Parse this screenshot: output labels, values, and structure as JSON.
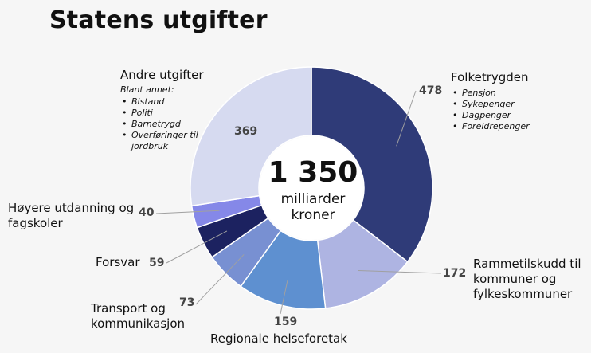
{
  "chart_data": {
    "type": "pie",
    "title": "Statens utgifter",
    "total": {
      "value": "1 350",
      "unit": "milliarder kroner"
    },
    "slices": [
      {
        "name": "Folketrygden",
        "value": 478,
        "color": "#2f3b78",
        "bullets": [
          "Pensjon",
          "Sykepenger",
          "Dagpenger",
          "Foreldrepenger"
        ]
      },
      {
        "name": "Rammetilskudd til kommuner og fylkeskommuner",
        "value": 172,
        "color": "#aeb4e2"
      },
      {
        "name": "Regionale helseforetak",
        "value": 159,
        "color": "#5e90d0"
      },
      {
        "name": "Transport og kommunikasjon",
        "value": 73,
        "color": "#7890d2"
      },
      {
        "name": "Forsvar",
        "value": 59,
        "color": "#1c2260"
      },
      {
        "name": "Høyere utdanning og fagskoler",
        "value": 40,
        "color": "#8588e8"
      },
      {
        "name": "Andre utgifter",
        "value": 369,
        "color": "#d6daf0",
        "note": "Blant annet:",
        "bullets": [
          "Bistand",
          "Politi",
          "Barnetrygd",
          "Overføringer til jordbruk"
        ]
      }
    ]
  }
}
